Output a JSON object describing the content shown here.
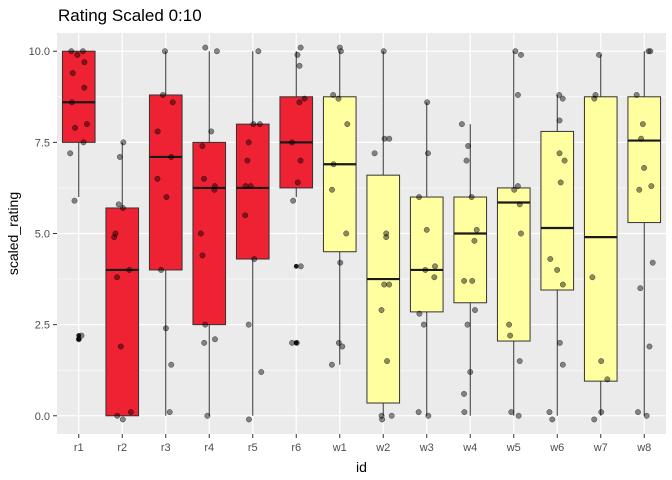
{
  "chart_data": {
    "type": "boxplot",
    "title": "Rating Scaled 0:10",
    "xlabel": "id",
    "ylabel": "scaled_rating",
    "ylim": [
      -0.5,
      10.5
    ],
    "y_ticks": [
      0.0,
      2.5,
      5.0,
      7.5,
      10.0
    ],
    "y_tick_labels": [
      "0.0",
      "2.5",
      "5.0",
      "7.5",
      "10.0"
    ],
    "grid": true,
    "panel_background": "#ebebeb",
    "categories": [
      "r1",
      "r2",
      "r3",
      "r4",
      "r5",
      "r6",
      "w1",
      "w2",
      "w3",
      "w4",
      "w5",
      "w6",
      "w7",
      "w8"
    ],
    "fill_colors": [
      "#ee2233",
      "#ee2233",
      "#ee2233",
      "#ee2233",
      "#ee2233",
      "#ee2233",
      "#ffffa0",
      "#ffffa0",
      "#ffffa0",
      "#ffffa0",
      "#ffffa0",
      "#ffffa0",
      "#ffffa0",
      "#ffffa0"
    ],
    "boxes": [
      {
        "id": "r1",
        "whisker_low": 6.0,
        "q1": 7.5,
        "median": 8.6,
        "q3": 10.0,
        "whisker_high": 10.0,
        "outliers": [
          2.2,
          2.1
        ],
        "points": [
          10.0,
          10.0,
          9.9,
          9.7,
          9.4,
          9.0,
          8.6,
          8.0,
          7.9,
          7.5,
          7.2,
          5.9,
          2.2,
          2.1
        ]
      },
      {
        "id": "r2",
        "whisker_low": 0.0,
        "q1": 0.0,
        "median": 4.0,
        "q3": 5.7,
        "whisker_high": 7.5,
        "outliers": [],
        "points": [
          7.5,
          7.1,
          5.8,
          5.7,
          5.0,
          4.9,
          4.0,
          3.8,
          1.9,
          0.1,
          0.0,
          -0.1
        ]
      },
      {
        "id": "r3",
        "whisker_low": 0.0,
        "q1": 4.0,
        "median": 7.1,
        "q3": 8.8,
        "whisker_high": 10.0,
        "outliers": [],
        "points": [
          10.0,
          8.8,
          8.6,
          7.8,
          7.1,
          6.5,
          6.0,
          4.0,
          2.4,
          1.4,
          0.1
        ]
      },
      {
        "id": "r4",
        "whisker_low": 0.0,
        "q1": 2.5,
        "median": 6.25,
        "q3": 7.5,
        "whisker_high": 10.0,
        "outliers": [],
        "points": [
          10.1,
          10.0,
          7.8,
          7.4,
          6.5,
          6.3,
          6.2,
          5.0,
          4.4,
          2.5,
          2.1,
          2.0,
          0.0
        ]
      },
      {
        "id": "r5",
        "whisker_low": 0.0,
        "q1": 4.3,
        "median": 6.25,
        "q3": 8.0,
        "whisker_high": 10.0,
        "outliers": [],
        "points": [
          10.0,
          8.0,
          8.0,
          7.5,
          7.0,
          6.3,
          6.3,
          5.5,
          4.3,
          2.5,
          1.2,
          -0.1
        ]
      },
      {
        "id": "r6",
        "whisker_low": 6.0,
        "q1": 6.25,
        "median": 7.5,
        "q3": 8.75,
        "whisker_high": 10.0,
        "outliers": [
          4.1,
          2.0,
          2.0
        ],
        "points": [
          10.1,
          9.9,
          9.6,
          8.7,
          8.6,
          7.5,
          7.0,
          6.4,
          5.9,
          4.1,
          2.0,
          2.0
        ]
      },
      {
        "id": "w1",
        "whisker_low": 1.4,
        "q1": 4.5,
        "median": 6.9,
        "q3": 8.75,
        "whisker_high": 10.0,
        "outliers": [],
        "points": [
          10.1,
          10.0,
          8.8,
          8.7,
          8.0,
          6.9,
          6.2,
          5.0,
          4.2,
          2.0,
          1.9,
          1.4
        ]
      },
      {
        "id": "w2",
        "whisker_low": 0.0,
        "q1": 0.35,
        "median": 3.75,
        "q3": 6.6,
        "whisker_high": 10.0,
        "outliers": [],
        "points": [
          10.0,
          7.6,
          7.6,
          7.2,
          5.0,
          4.9,
          3.6,
          3.6,
          2.9,
          1.5,
          0.0,
          0.0,
          -0.1
        ]
      },
      {
        "id": "w3",
        "whisker_low": 0.0,
        "q1": 2.85,
        "median": 4.0,
        "q3": 6.0,
        "whisker_high": 8.6,
        "outliers": [],
        "points": [
          8.6,
          7.2,
          6.0,
          5.1,
          4.1,
          4.0,
          3.8,
          2.8,
          2.5,
          0.1,
          0.0
        ]
      },
      {
        "id": "w4",
        "whisker_low": 0.0,
        "q1": 3.1,
        "median": 5.0,
        "q3": 6.0,
        "whisker_high": 8.0,
        "outliers": [],
        "points": [
          8.0,
          7.4,
          7.0,
          6.0,
          5.1,
          4.8,
          3.7,
          3.7,
          2.9,
          2.5,
          1.2,
          0.6,
          0.1
        ]
      },
      {
        "id": "w5",
        "whisker_low": 0.0,
        "q1": 2.05,
        "median": 5.85,
        "q3": 6.25,
        "whisker_high": 10.0,
        "outliers": [],
        "points": [
          10.0,
          9.9,
          8.8,
          6.3,
          6.2,
          5.8,
          5.0,
          2.5,
          2.2,
          1.5,
          0.1,
          0.0
        ]
      },
      {
        "id": "w6",
        "whisker_low": 0.0,
        "q1": 3.45,
        "median": 5.15,
        "q3": 7.8,
        "whisker_high": 8.8,
        "outliers": [],
        "points": [
          8.8,
          8.7,
          8.1,
          7.2,
          7.0,
          6.4,
          4.3,
          4.0,
          3.6,
          2.0,
          1.4,
          0.1,
          -0.1
        ]
      },
      {
        "id": "w7",
        "whisker_low": 0.0,
        "q1": 0.95,
        "median": 4.9,
        "q3": 8.75,
        "whisker_high": 9.9,
        "outliers": [],
        "points": [
          9.9,
          8.8,
          8.7,
          3.8,
          1.5,
          1.0,
          0.1,
          -0.1
        ]
      },
      {
        "id": "w8",
        "whisker_low": 0.0,
        "q1": 5.3,
        "median": 7.55,
        "q3": 8.75,
        "whisker_high": 10.0,
        "outliers": [],
        "points": [
          10.0,
          10.0,
          8.8,
          8.0,
          7.6,
          6.8,
          6.3,
          6.2,
          4.2,
          3.5,
          1.9,
          0.1,
          0.0
        ]
      }
    ]
  }
}
